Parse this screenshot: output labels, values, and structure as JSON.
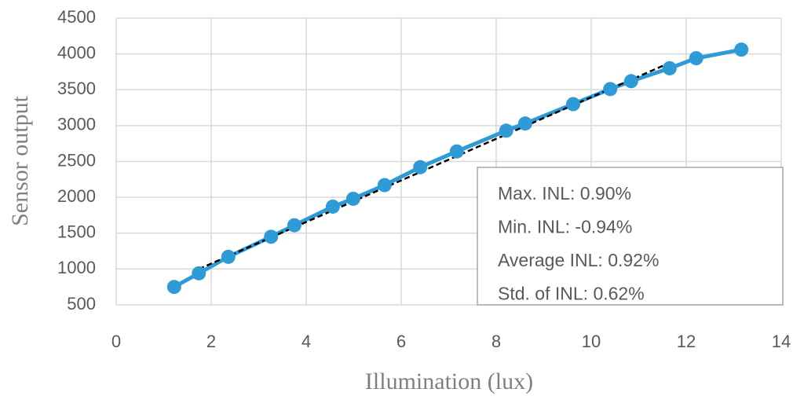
{
  "chart_data": {
    "type": "line",
    "x_label": "Illumination (lux)",
    "y_label": "Sensor output",
    "x": [
      1.22,
      1.74,
      2.36,
      3.26,
      3.75,
      4.56,
      4.99,
      5.65,
      6.4,
      7.17,
      8.21,
      8.61,
      9.62,
      10.4,
      10.84,
      11.65,
      12.21,
      13.16
    ],
    "series": [
      {
        "color": "#2e9bd6",
        "values": [
          750,
          940,
          1170,
          1450,
          1610,
          1870,
          1980,
          2170,
          2420,
          2640,
          2930,
          3030,
          3300,
          3510,
          3620,
          3800,
          3940,
          4060
        ]
      }
    ],
    "trendline": {
      "x": [
        1.74,
        11.65
      ],
      "values": [
        1000,
        3875
      ],
      "color": "#000000"
    },
    "annotations": [
      "Max. INL: 0.90%",
      "Min. INL: -0.94%",
      "Average INL: 0.92%",
      "Std. of INL: 0.62%"
    ],
    "xlim": [
      0,
      14
    ],
    "xticks": [
      0,
      2,
      4,
      6,
      8,
      10,
      12,
      14
    ],
    "ylim": [
      500,
      4500
    ],
    "yticks": [
      500,
      1000,
      1500,
      2000,
      2500,
      3000,
      3500,
      4000,
      4500
    ],
    "grid": true
  }
}
